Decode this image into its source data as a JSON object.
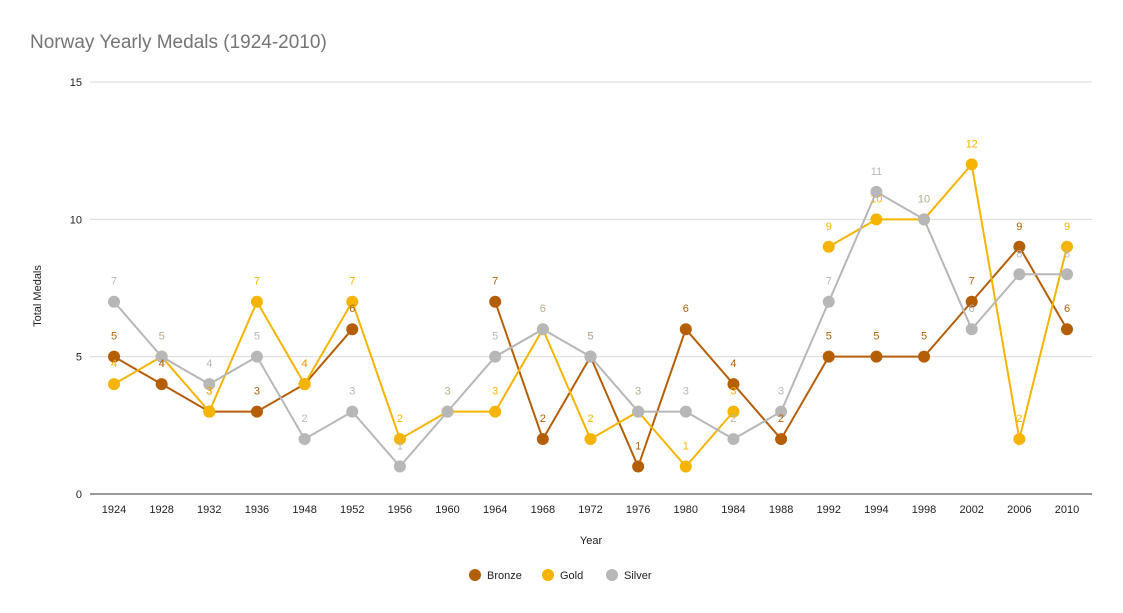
{
  "chart_data": {
    "type": "line",
    "title": "Norway Yearly Medals (1924-2010)",
    "xlabel": "Year",
    "ylabel": "Total Medals",
    "ylim": [
      0,
      15
    ],
    "yticks": [
      "0",
      "5",
      "10",
      "15"
    ],
    "grid": true,
    "legend_position": "bottom",
    "categories": [
      "1924",
      "1928",
      "1932",
      "1936",
      "1948",
      "1952",
      "1956",
      "1960",
      "1964",
      "1968",
      "1972",
      "1976",
      "1980",
      "1984",
      "1988",
      "1992",
      "1994",
      "1998",
      "2002",
      "2006",
      "2010"
    ],
    "series": [
      {
        "name": "Bronze",
        "color": "#b45f06",
        "values": [
          5,
          4,
          3,
          3,
          4,
          6,
          null,
          null,
          7,
          2,
          5,
          1,
          6,
          4,
          2,
          5,
          5,
          5,
          7,
          9,
          6
        ]
      },
      {
        "name": "Gold",
        "color": "#f4b400",
        "values": [
          4,
          5,
          3,
          7,
          4,
          7,
          2,
          3,
          3,
          6,
          2,
          3,
          1,
          3,
          null,
          9,
          10,
          10,
          12,
          2,
          9
        ]
      },
      {
        "name": "Silver",
        "color": "#b7b7b7",
        "values": [
          7,
          5,
          4,
          5,
          2,
          3,
          1,
          3,
          5,
          6,
          5,
          3,
          3,
          2,
          3,
          7,
          11,
          10,
          6,
          8,
          8
        ]
      }
    ]
  }
}
